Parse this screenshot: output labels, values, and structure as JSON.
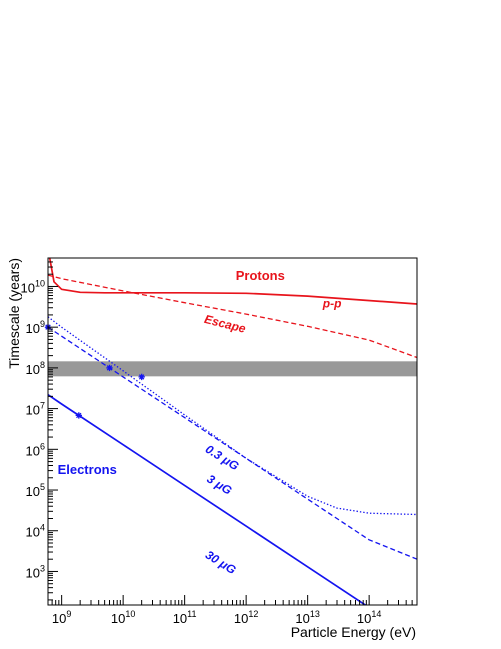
{
  "chart_data": {
    "type": "line",
    "title": "",
    "xlabel": "Particle Energy (eV)",
    "ylabel": "Timescale (years)",
    "xscale": "log",
    "yscale": "log",
    "xlim": [
      600000000.0,
      600000000000000.0
    ],
    "ylim": [
      150,
      50000000000.0
    ],
    "x_tick_labels": [
      "10^9",
      "10^10",
      "10^11",
      "10^12",
      "10^13",
      "10^14"
    ],
    "y_tick_labels": [
      "10^3",
      "10^4",
      "10^5",
      "10^6",
      "10^7",
      "10^8",
      "10^9",
      "10^10"
    ],
    "band": {
      "y_range": [
        62000000.0,
        145000000.0
      ],
      "color": "#999999"
    },
    "series": [
      {
        "color": "#e8141c",
        "dash": "solid",
        "x": [
          640000000.0,
          750000000.0,
          1000000000.0,
          2000000000.0,
          5000000000.0,
          10000000000.0,
          100000000000.0,
          1000000000000.0,
          10000000000000.0,
          600000000000000.0
        ],
        "y": [
          50000000000.0,
          13000000000.0,
          8500000000.0,
          7200000000.0,
          7000000000.0,
          7000000000.0,
          7000000000.0,
          6800000000.0,
          5800000000.0,
          3700000000.0
        ]
      },
      {
        "color": "#e8141c",
        "dash": "dashed",
        "x": [
          600000000.0,
          1000000000.0,
          10000000000.0,
          100000000000.0,
          1000000000000.0,
          10000000000000.0,
          100000000000000.0,
          600000000000000.0
        ],
        "y": [
          19000000000.0,
          15500000000.0,
          7800000000.0,
          4000000000.0,
          2100000000.0,
          1050000000.0,
          480000000.0,
          180000000.0
        ]
      },
      {
        "color": "#1414f0",
        "dash": "dotted",
        "x": [
          600000000.0,
          1000000000.0,
          10000000000.0,
          100000000000.0,
          1000000000000.0,
          10000000000000.0,
          30000000000000.0,
          100000000000000.0,
          600000000000000.0
        ],
        "y": [
          1800000000.0,
          1000000000.0,
          85000000.0,
          7000000.0,
          600000.0,
          70000.0,
          36000.0,
          27000.0,
          25000.0
        ]
      },
      {
        "color": "#1414f0",
        "dash": "dashed",
        "x": [
          600000000.0,
          1000000000.0,
          10000000000.0,
          100000000000.0,
          1000000000000.0,
          10000000000000.0,
          100000000000000.0,
          600000000000000.0
        ],
        "y": [
          1000000000.0,
          600000000.0,
          60000000.0,
          6000000.0,
          600000.0,
          60000.0,
          6000.0,
          2000.0
        ]
      },
      {
        "color": "#1414f0",
        "dash": "solid",
        "x": [
          600000000.0,
          1000000000.0,
          10000000000.0,
          100000000000.0,
          1000000000000.0,
          10000000000000.0,
          100000000000000.0,
          200000000000000.0
        ],
        "y": [
          22000000.0,
          13000000.0,
          1300000.0,
          130000.0,
          13000.0,
          1300.0,
          130,
          65
        ]
      }
    ],
    "markers": [
      {
        "x": 1900000000.0,
        "y": 6800000.0,
        "color": "#1414f0"
      },
      {
        "x": 6000000000.0,
        "y": 100000000.0,
        "color": "#1414f0"
      },
      {
        "x": 20000000000.0,
        "y": 60000000.0,
        "color": "#1414f0"
      },
      {
        "x": 600000000.0,
        "y": 1000000000.0,
        "color": "#1414f0"
      }
    ],
    "annotations": [
      {
        "text": "Protons",
        "x": 1700000000000.0,
        "y": 17500000000.0,
        "color": "#e8141c",
        "angle": 0,
        "size": "large"
      },
      {
        "text": "p-p",
        "x": 25000000000000.0,
        "y": 3600000000.0,
        "color": "#e8141c",
        "angle": 0,
        "size": "small"
      },
      {
        "text": "Escape",
        "x": 450000000000.0,
        "y": 1150000000.0,
        "color": "#e8141c",
        "angle": 14,
        "size": "small"
      },
      {
        "text": "Electrons",
        "x": 2600000000.0,
        "y": 300000.0,
        "color": "#1414f0",
        "angle": 0,
        "size": "large"
      },
      {
        "text": "0.3 μG",
        "x": 400000000000.0,
        "y": 600000.0,
        "color": "#1414f0",
        "angle": 32,
        "size": "small"
      },
      {
        "text": "3 μG",
        "x": 360000000000.0,
        "y": 130000.0,
        "color": "#1414f0",
        "angle": 32,
        "size": "small"
      },
      {
        "text": "30 μG",
        "x": 380000000000.0,
        "y": 1600.0,
        "color": "#1414f0",
        "angle": 32,
        "size": "small"
      }
    ]
  }
}
